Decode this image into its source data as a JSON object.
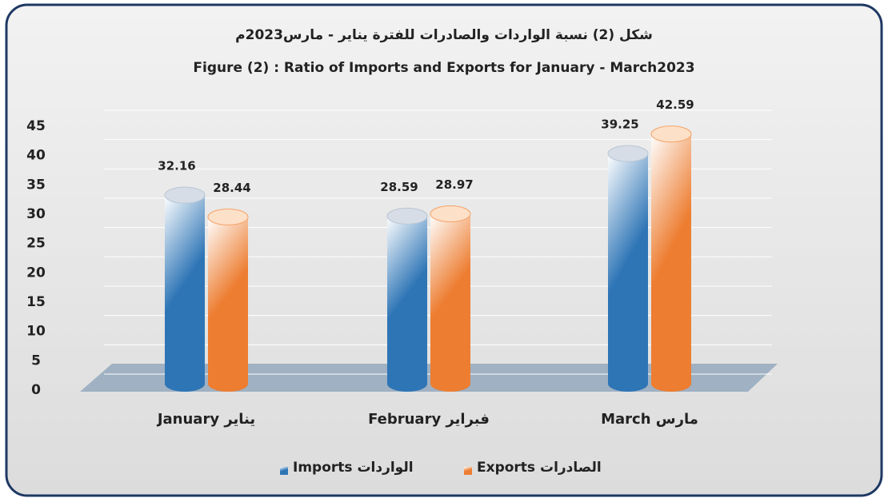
{
  "chart_data": {
    "type": "bar",
    "title": "شكل (2) نسبة الواردات والصادرات للفترة يناير - مارس2023م",
    "subtitle": "Figure (2) : Ratio of Imports and Exports for January  - March2023",
    "categories": [
      "January يناير",
      "February فبراير",
      "March مارس"
    ],
    "series": [
      {
        "name": "Imports الواردات",
        "color": "#2e75b6",
        "values": [
          32.16,
          28.59,
          39.25
        ]
      },
      {
        "name": "Exports الصادرات",
        "color": "#ed7d31",
        "values": [
          28.44,
          28.97,
          42.59
        ]
      }
    ],
    "ylim": [
      0,
      45
    ],
    "yticks": [
      0,
      5,
      10,
      15,
      20,
      25,
      30,
      35,
      40,
      45
    ],
    "grid": true,
    "legend": "bottom"
  }
}
